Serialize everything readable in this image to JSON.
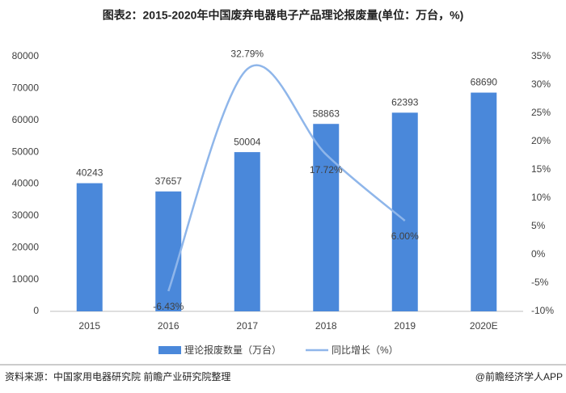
{
  "chart_data": {
    "type": "bar-line",
    "title": "图表2：2015-2020年中国废弃电器电子产品理论报废量(单位：万台，%)",
    "categories": [
      "2015",
      "2016",
      "2017",
      "2018",
      "2019",
      "2020E"
    ],
    "series": [
      {
        "name": "理论报废数量（万台）",
        "type": "bar",
        "color": "#4a88da",
        "values": [
          40243,
          37657,
          50004,
          58863,
          62393,
          68690
        ]
      },
      {
        "name": "同比增长（%）",
        "type": "line",
        "axis": "y2",
        "color": "#8fb6ea",
        "values": [
          null,
          -6.43,
          32.79,
          17.72,
          6.0,
          null
        ],
        "value_labels": [
          null,
          "-6.43%",
          "32.79%",
          "17.72%",
          "6.00%",
          null
        ]
      }
    ],
    "ylim": [
      0,
      80000
    ],
    "yticks": [
      0,
      10000,
      20000,
      30000,
      40000,
      50000,
      60000,
      70000,
      80000
    ],
    "y2lim": [
      -10,
      35
    ],
    "y2ticks": [
      {
        "value": -10,
        "label": "-10%"
      },
      {
        "value": -5,
        "label": "-5%"
      },
      {
        "value": 0,
        "label": "0%"
      },
      {
        "value": 5,
        "label": "5%"
      },
      {
        "value": 10,
        "label": "10%"
      },
      {
        "value": 15,
        "label": "15%"
      },
      {
        "value": 20,
        "label": "20%"
      },
      {
        "value": 25,
        "label": "25%"
      },
      {
        "value": 30,
        "label": "30%"
      },
      {
        "value": 35,
        "label": "35%"
      }
    ],
    "source": "资料来源：中国家用电器研究院 前瞻产业研究院整理",
    "credit": "@前瞻经济学人APP"
  }
}
